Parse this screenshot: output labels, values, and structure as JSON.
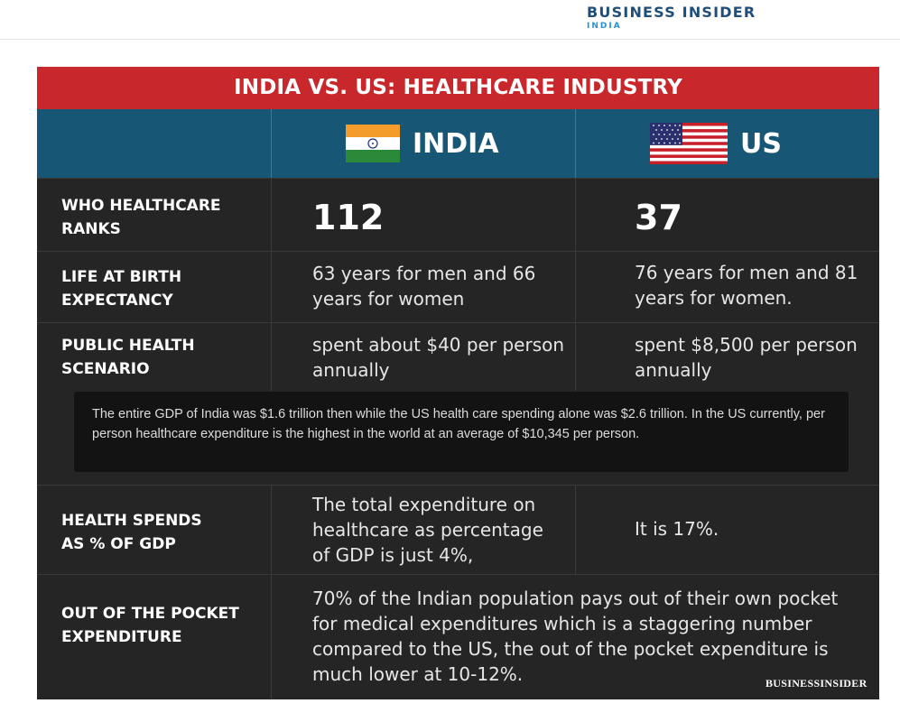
{
  "header": {
    "logo_main": "BUSINESS INSIDER",
    "logo_sub": "INDIA"
  },
  "infographic": {
    "title": "INDIA VS. US: HEALTHCARE INDUSTRY",
    "columns": {
      "india": "INDIA",
      "us": "US"
    },
    "rows": [
      {
        "label_line1": "WHO HEALTHCARE",
        "label_line2": "RANKS",
        "india": "112",
        "us": "37"
      },
      {
        "label_line1": "LIFE AT BIRTH",
        "label_line2": "EXPECTANCY",
        "india": "63 years for men and 66 years for women",
        "us": "76 years for men and 81 years for women."
      },
      {
        "label_line1": "PUBLIC HEALTH",
        "label_line2": "SCENARIO",
        "india": "spent about $40 per person annually",
        "us": "spent $8,500 per person annually"
      },
      {
        "label_line1": "HEALTH SPENDS",
        "label_line2": "AS % OF GDP",
        "india": "The total expenditure on healthcare as percentage of GDP is just 4%,",
        "us": "It is 17%."
      },
      {
        "label_line1": "OUT OF THE POCKET",
        "label_line2": "EXPENDITURE",
        "merged": "70% of the Indian population pays out of their own pocket for medical expenditures which is a staggering number compared to the US, the out of the pocket expenditure is much lower at 10-12%."
      }
    ],
    "note": "The entire GDP of India was $1.6 trillion then while the US health care spending alone was $2.6 trillion. In the US currently, per person healthcare expenditure is the highest in the world at an average of $10,345 per person.",
    "stamp": "BUSINESSINSIDER",
    "colors": {
      "title_bar": "#c8282c",
      "header_row": "#175775",
      "body": "#252525"
    }
  }
}
